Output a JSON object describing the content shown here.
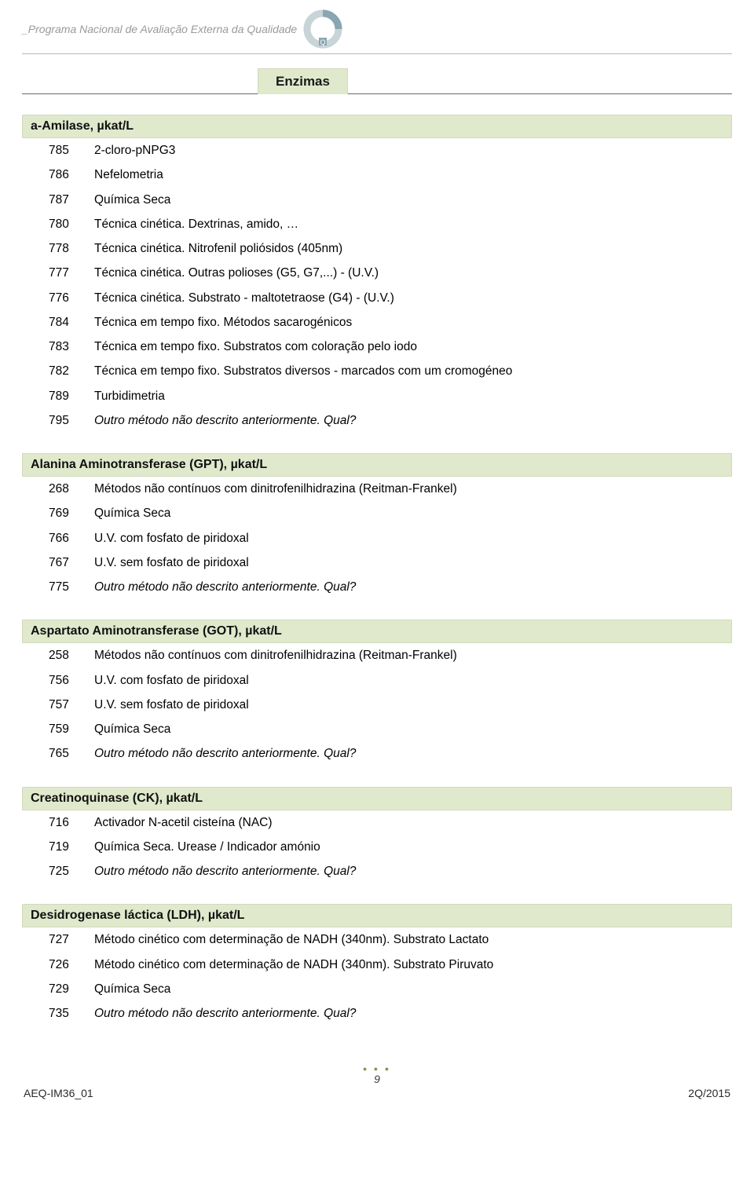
{
  "header": {
    "program_text": "_Programa Nacional de Avaliação Externa da Qualidade",
    "logo_letter": "Q"
  },
  "section_title": "Enzimas",
  "groups": [
    {
      "title": "a-Amilase, µkat/L",
      "items": [
        {
          "code": "785",
          "label": "2-cloro-pNPG3",
          "italic": false
        },
        {
          "code": "786",
          "label": "Nefelometria",
          "italic": false
        },
        {
          "code": "787",
          "label": "Química Seca",
          "italic": false
        },
        {
          "code": "780",
          "label": "Técnica cinética. Dextrinas, amido, …",
          "italic": false
        },
        {
          "code": "778",
          "label": "Técnica cinética. Nitrofenil poliósidos (405nm)",
          "italic": false
        },
        {
          "code": "777",
          "label": "Técnica cinética. Outras polioses (G5, G7,...) - (U.V.)",
          "italic": false
        },
        {
          "code": "776",
          "label": "Técnica cinética. Substrato - maltotetraose (G4) - (U.V.)",
          "italic": false
        },
        {
          "code": "784",
          "label": "Técnica em tempo fixo. Métodos sacarogénicos",
          "italic": false
        },
        {
          "code": "783",
          "label": "Técnica em tempo fixo. Substratos com coloração pelo iodo",
          "italic": false
        },
        {
          "code": "782",
          "label": "Técnica em tempo fixo. Substratos diversos - marcados com um cromogéneo",
          "italic": false
        },
        {
          "code": "789",
          "label": "Turbidimetria",
          "italic": false
        },
        {
          "code": "795",
          "label": "Outro método não descrito anteriormente. Qual?",
          "italic": true
        }
      ]
    },
    {
      "title": "Alanina Aminotransferase (GPT), µkat/L",
      "items": [
        {
          "code": "268",
          "label": "Métodos não contínuos com dinitrofenilhidrazina (Reitman-Frankel)",
          "italic": false
        },
        {
          "code": "769",
          "label": "Química Seca",
          "italic": false
        },
        {
          "code": "766",
          "label": "U.V. com fosfato de piridoxal",
          "italic": false
        },
        {
          "code": "767",
          "label": "U.V. sem fosfato de piridoxal",
          "italic": false
        },
        {
          "code": "775",
          "label": "Outro método não descrito anteriormente. Qual?",
          "italic": true
        }
      ]
    },
    {
      "title": "Aspartato Aminotransferase (GOT), µkat/L",
      "items": [
        {
          "code": "258",
          "label": "Métodos não contínuos com dinitrofenilhidrazina (Reitman-Frankel)",
          "italic": false
        },
        {
          "code": "756",
          "label": "U.V. com fosfato de piridoxal",
          "italic": false
        },
        {
          "code": "757",
          "label": "U.V. sem fosfato de piridoxal",
          "italic": false
        },
        {
          "code": "759",
          "label": "Química Seca",
          "italic": false
        },
        {
          "code": "765",
          "label": "Outro método não descrito anteriormente. Qual?",
          "italic": true
        }
      ]
    },
    {
      "title": "Creatinoquinase (CK), µkat/L",
      "items": [
        {
          "code": "716",
          "label": "Activador N-acetil cisteína (NAC)",
          "italic": false
        },
        {
          "code": "719",
          "label": "Química Seca. Urease / Indicador amónio",
          "italic": false
        },
        {
          "code": "725",
          "label": "Outro método não descrito anteriormente. Qual?",
          "italic": true
        }
      ]
    },
    {
      "title": "Desidrogenase láctica (LDH), µkat/L",
      "items": [
        {
          "code": "727",
          "label": "Método cinético com determinação de NADH (340nm). Substrato Lactato",
          "italic": false
        },
        {
          "code": "726",
          "label": "Método cinético com determinação de NADH (340nm). Substrato Piruvato",
          "italic": false
        },
        {
          "code": "729",
          "label": "Química Seca",
          "italic": false
        },
        {
          "code": "735",
          "label": "Outro método não descrito anteriormente. Qual?",
          "italic": true
        }
      ]
    }
  ],
  "footer": {
    "page_number": "9",
    "left": "AEQ-IM36_01",
    "right": "2Q/2015"
  },
  "colors": {
    "group_bg": "#e0e9cc",
    "group_border": "#d0d9bc",
    "text": "#000000",
    "header_gray": "#9a9a9a",
    "accent": "#7a9a4a"
  }
}
